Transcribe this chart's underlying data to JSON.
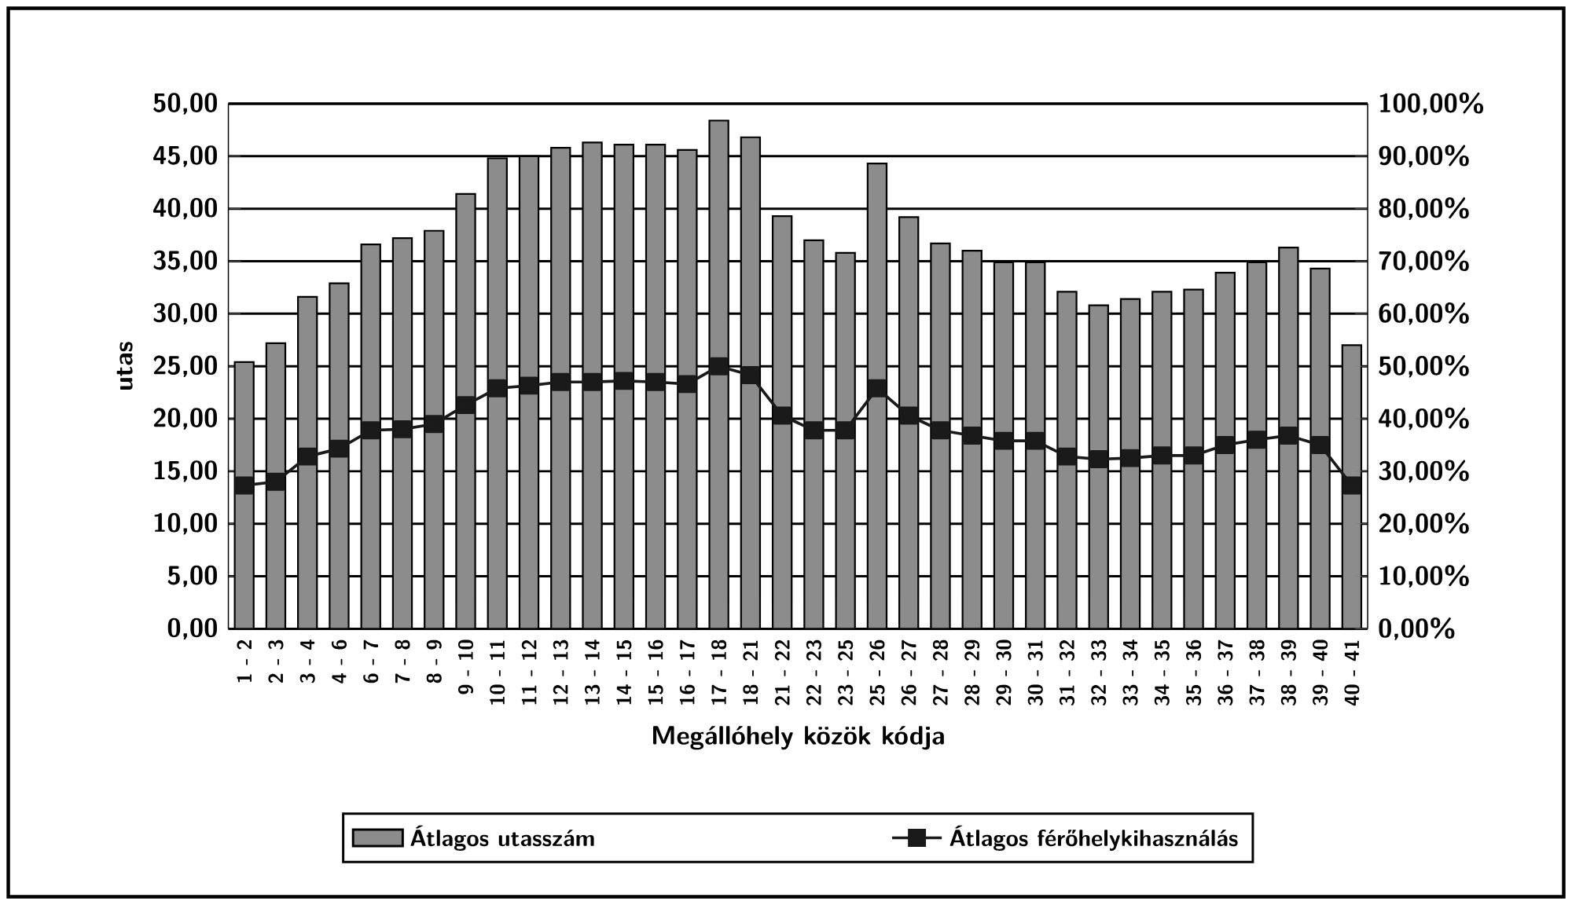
{
  "chart_data": {
    "type": "bar",
    "xlabel": "Megállóhely közök kódja",
    "ylabel": "utas",
    "categories": [
      "1 - 2",
      "2 - 3",
      "3 - 4",
      "4 - 6",
      "6 - 7",
      "7 - 8",
      "8 - 9",
      "9 - 10",
      "10 - 11",
      "11 - 12",
      "12 - 13",
      "13 - 14",
      "14 - 15",
      "15 - 16",
      "16 - 17",
      "17 - 18",
      "18 - 21",
      "21 - 22",
      "22 - 23",
      "23 - 25",
      "25 - 26",
      "26 - 27",
      "27 - 28",
      "28 - 29",
      "29 - 30",
      "30 - 31",
      "31 - 32",
      "32 - 33",
      "33 - 34",
      "34 - 35",
      "35 - 36",
      "36 - 37",
      "37 - 38",
      "38 - 39",
      "39 - 40",
      "40 - 41"
    ],
    "series": [
      {
        "name": "Átlagos utasszám",
        "color": "#8c8c8c",
        "values": [
          25.4,
          27.2,
          31.6,
          32.9,
          36.6,
          37.2,
          37.9,
          41.4,
          44.8,
          45.0,
          45.8,
          46.3,
          46.1,
          46.1,
          45.6,
          48.4,
          46.8,
          39.3,
          37.0,
          35.8,
          44.3,
          39.2,
          36.7,
          36.0,
          34.9,
          34.9,
          32.1,
          30.8,
          31.4,
          32.1,
          32.3,
          33.9,
          34.9,
          36.3,
          34.3,
          27.0
        ]
      },
      {
        "name": "Átlagos férőhelykihasználás",
        "type": "line",
        "axis": "y2",
        "color": "#1a1a1a",
        "marker": "square",
        "values": [
          27.3,
          28.0,
          32.8,
          34.3,
          37.8,
          38.0,
          39.0,
          42.6,
          45.8,
          46.3,
          47.0,
          47.0,
          47.2,
          47.0,
          46.6,
          50.0,
          48.3,
          40.6,
          37.8,
          37.8,
          45.8,
          40.6,
          37.8,
          36.8,
          35.8,
          35.8,
          32.8,
          32.3,
          32.5,
          33.0,
          33.0,
          35.0,
          36.0,
          36.8,
          35.0,
          27.3
        ]
      }
    ],
    "ylim": [
      0,
      50
    ],
    "yticks": [
      {
        "value": 0,
        "label": "0,00"
      },
      {
        "value": 5,
        "label": "5,00"
      },
      {
        "value": 10,
        "label": "10,00"
      },
      {
        "value": 15,
        "label": "15,00"
      },
      {
        "value": 20,
        "label": "20,00"
      },
      {
        "value": 25,
        "label": "25,00"
      },
      {
        "value": 30,
        "label": "30,00"
      },
      {
        "value": 35,
        "label": "35,00"
      },
      {
        "value": 40,
        "label": "40,00"
      },
      {
        "value": 45,
        "label": "45,00"
      },
      {
        "value": 50,
        "label": "50,00"
      }
    ],
    "y2lim": [
      0,
      100
    ],
    "y2ticks": [
      {
        "value": 0,
        "label": "0,00%"
      },
      {
        "value": 10,
        "label": "10,00%"
      },
      {
        "value": 20,
        "label": "20,00%"
      },
      {
        "value": 30,
        "label": "30,00%"
      },
      {
        "value": 40,
        "label": "40,00%"
      },
      {
        "value": 50,
        "label": "50,00%"
      },
      {
        "value": 60,
        "label": "60,00%"
      },
      {
        "value": 70,
        "label": "70,00%"
      },
      {
        "value": 80,
        "label": "80,00%"
      },
      {
        "value": 90,
        "label": "90,00%"
      },
      {
        "value": 100,
        "label": "100,00%"
      }
    ],
    "grid": "y",
    "legend": "bottom"
  }
}
